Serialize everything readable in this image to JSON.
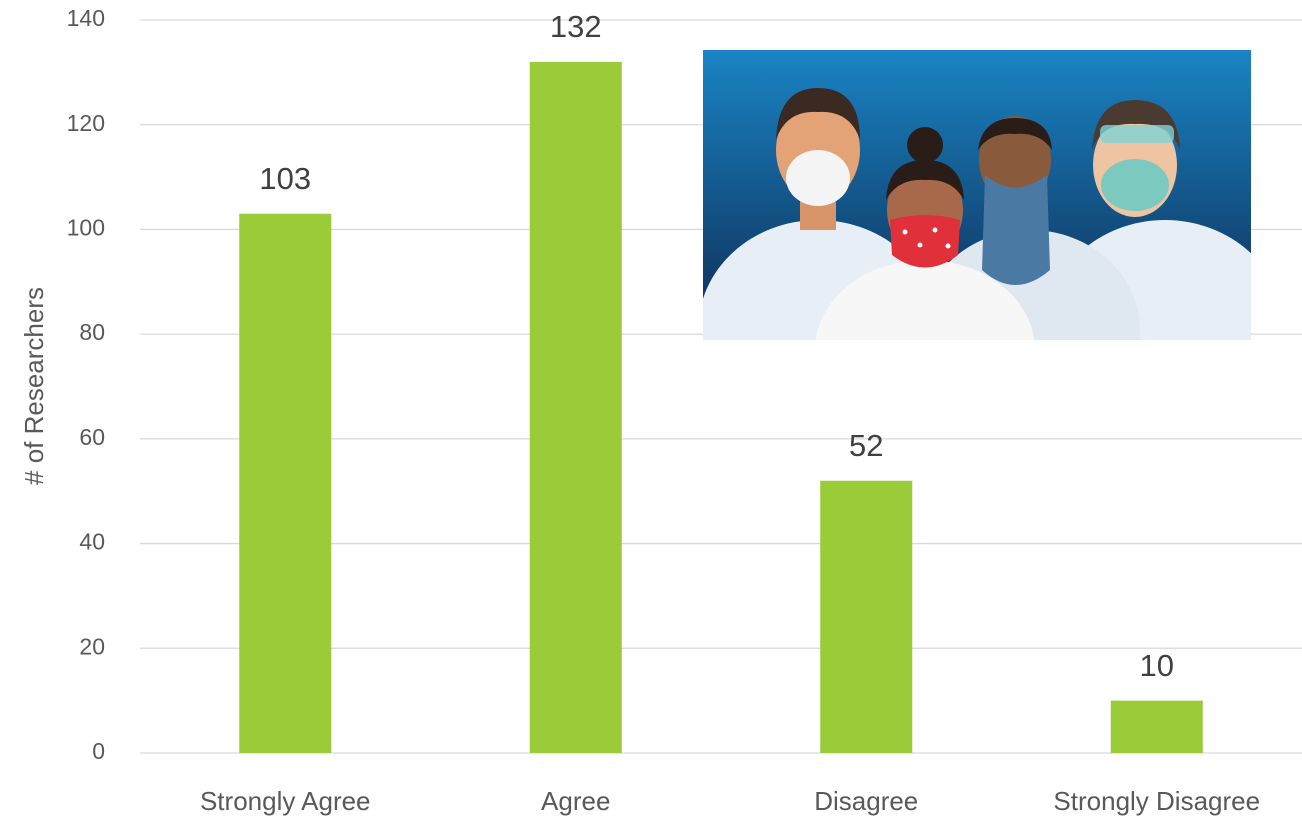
{
  "chart_data": {
    "type": "bar",
    "y_label": "# of Researchers",
    "categories": [
      "Strongly Agree",
      "Agree",
      "Disagree",
      "Strongly Disagree"
    ],
    "values": [
      103,
      132,
      52,
      10
    ],
    "color": "#9acb38",
    "ylim": [
      0,
      140
    ],
    "yticks": [
      0,
      20,
      40,
      60,
      80,
      100,
      120,
      140
    ],
    "grid": true
  }
}
